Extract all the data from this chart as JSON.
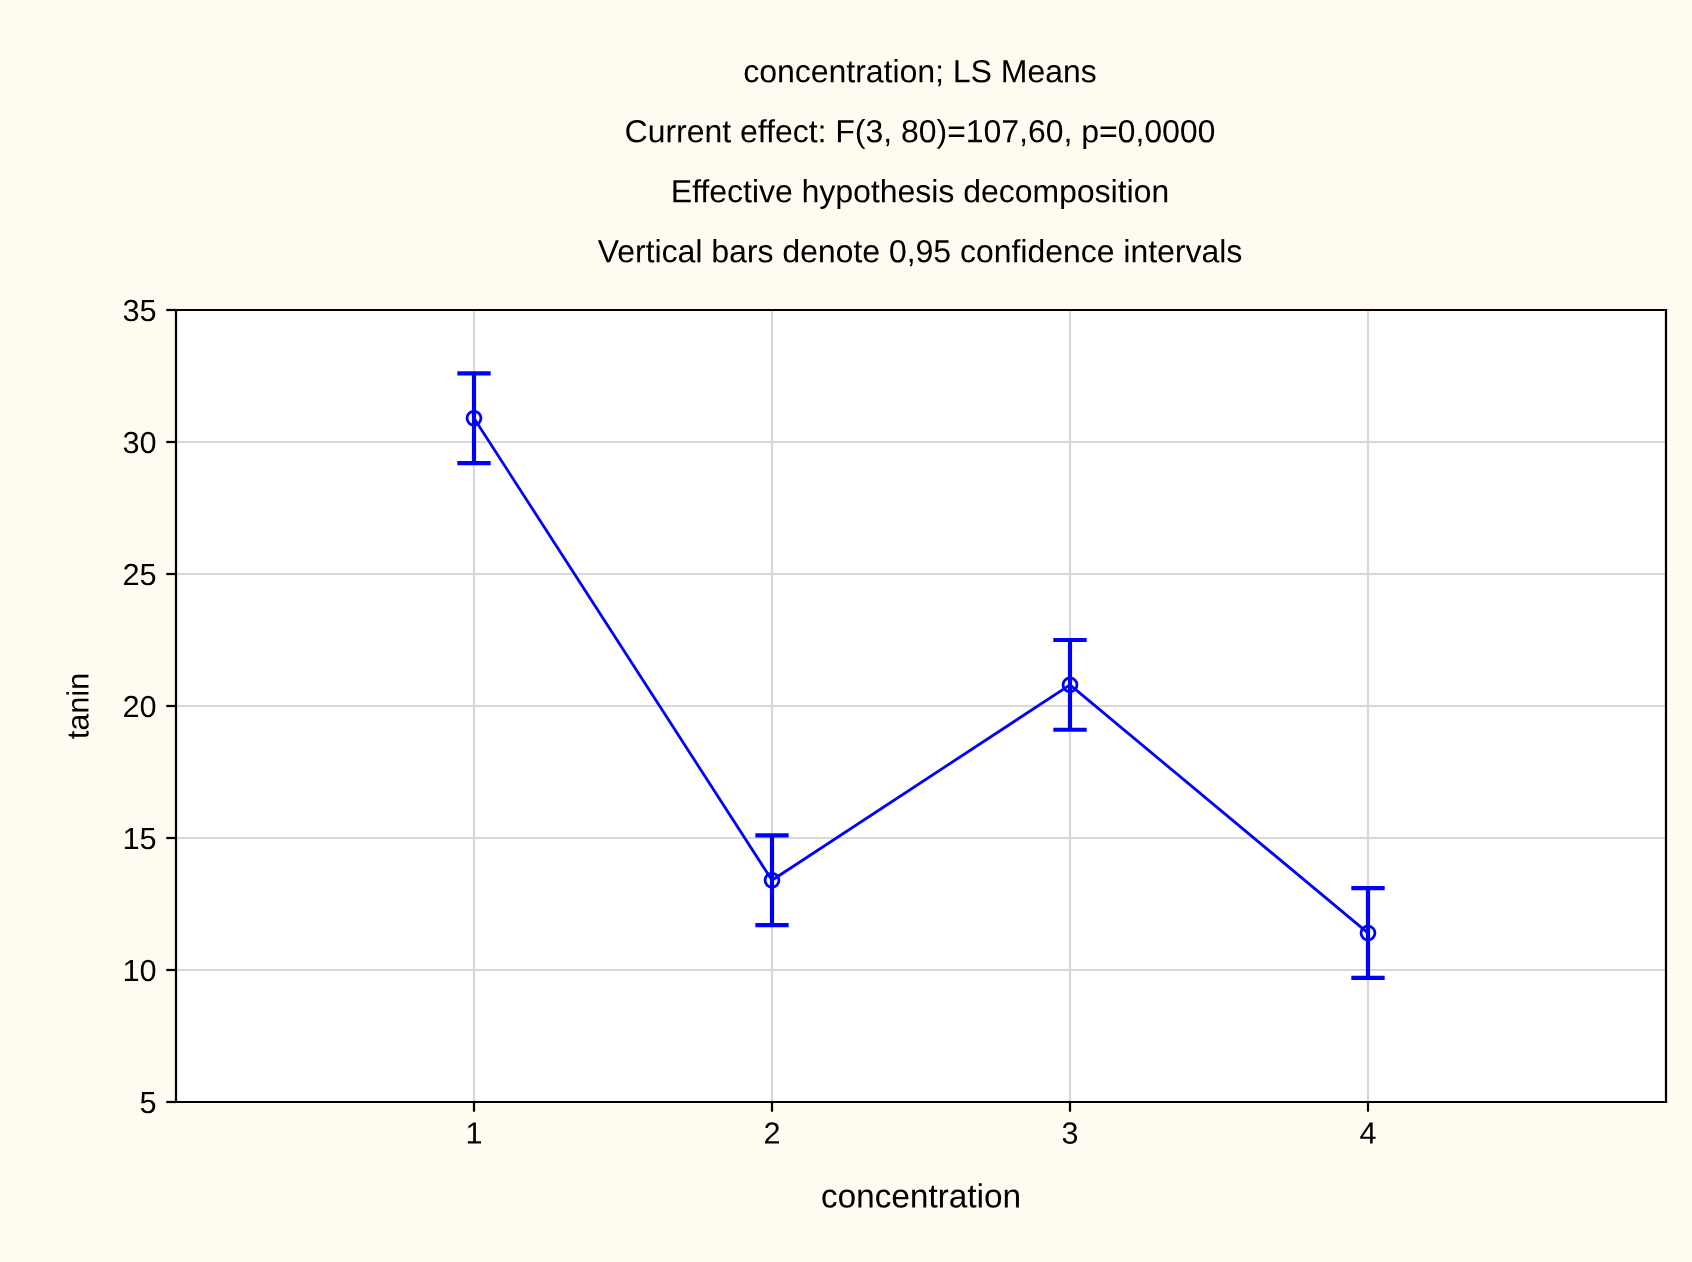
{
  "chart_data": {
    "type": "line",
    "title": "concentration; LS Means",
    "subtitle": "Current effect: F(3, 80)=107,60, p=0,0000\nEffective hypothesis decomposition\nVertical bars denote 0,95 confidence intervals",
    "xlabel": "concentration",
    "ylabel": "tanin",
    "x": [
      1,
      2,
      3,
      4
    ],
    "series": [
      {
        "color": "#0000ff",
        "values": [
          30.9,
          13.4,
          20.8,
          11.4
        ],
        "errors": [
          1.7,
          1.7,
          1.7,
          1.7
        ]
      }
    ],
    "xlim": [
      0,
      5
    ],
    "xticks": [
      1,
      2,
      3,
      4
    ],
    "ylim": [
      5,
      35
    ],
    "yticks": [
      5,
      10,
      15,
      20,
      25,
      30,
      35
    ],
    "grid": true,
    "marker": "circle",
    "line_style": "solid"
  }
}
